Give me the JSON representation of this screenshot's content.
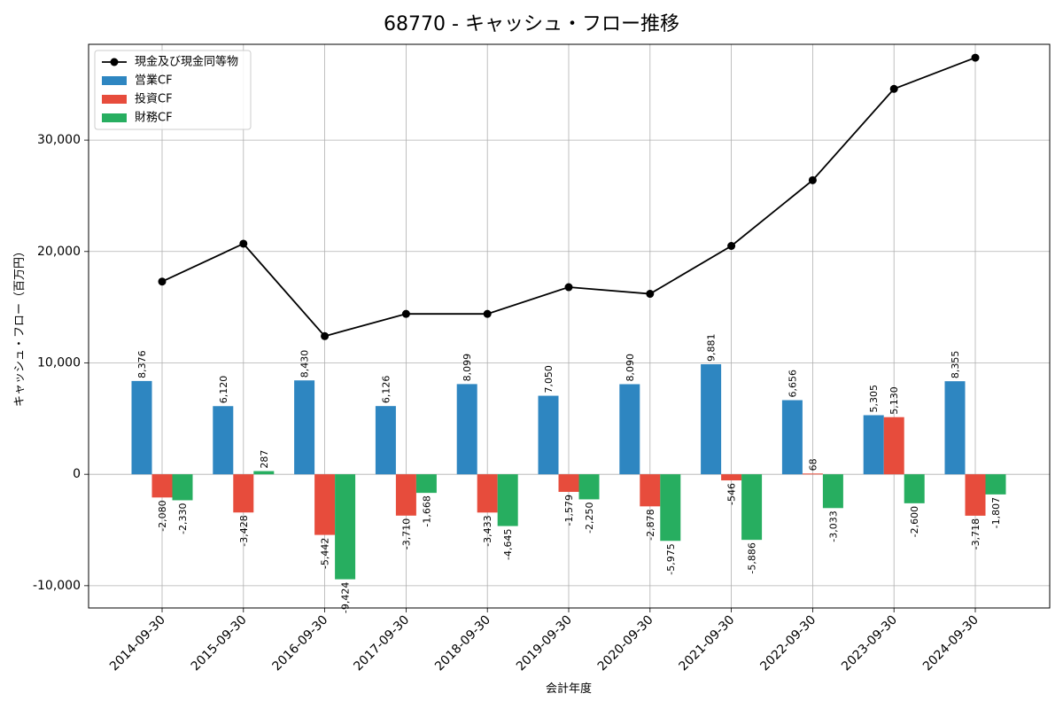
{
  "chart_data": {
    "type": "bar",
    "title": "68770 - キャッシュ・フロー推移",
    "xlabel": "会計年度",
    "ylabel": "キャッシュ・フロー（百万円）",
    "categories": [
      "2014-09-30",
      "2015-09-30",
      "2016-09-30",
      "2017-09-30",
      "2018-09-30",
      "2019-09-30",
      "2020-09-30",
      "2021-09-30",
      "2022-09-30",
      "2023-09-30",
      "2024-09-30"
    ],
    "ylim": [
      -12000,
      38600
    ],
    "yticks": [
      -10000,
      0,
      10000,
      20000,
      30000
    ],
    "ytick_labels": [
      "-10,000",
      "0",
      "10,000",
      "20,000",
      "30,000"
    ],
    "grid": true,
    "legend_position": "top-left",
    "series": [
      {
        "name": "営業CF",
        "kind": "bar",
        "color": "#2e86c1",
        "values": [
          8376,
          6120,
          8430,
          6126,
          8099,
          7050,
          8090,
          9881,
          6656,
          5305,
          8355
        ],
        "labels": [
          "8,376",
          "6,120",
          "8,430",
          "6,126",
          "8,099",
          "7,050",
          "8,090",
          "9,881",
          "6,656",
          "5,305",
          "8,355"
        ]
      },
      {
        "name": "投資CF",
        "kind": "bar",
        "color": "#e74c3c",
        "values": [
          -2080,
          -3428,
          -5442,
          -3710,
          -3433,
          -1579,
          -2878,
          -546,
          68,
          5130,
          -3718
        ],
        "labels": [
          "-2,080",
          "-3,428",
          "-5,442",
          "-3,710",
          "-3,433",
          "-1,579",
          "-2,878",
          "-546",
          "68",
          "5,130",
          "-3,718"
        ]
      },
      {
        "name": "財務CF",
        "kind": "bar",
        "color": "#27ae60",
        "values": [
          -2330,
          287,
          -9424,
          -1668,
          -4645,
          -2250,
          -5975,
          -5886,
          -3033,
          -2600,
          -1807
        ],
        "labels": [
          "-2,330",
          "287",
          "-9,424",
          "-1,668",
          "-4,645",
          "-2,250",
          "-5,975",
          "-5,886",
          "-3,033",
          "-2,600",
          "-1,807"
        ]
      },
      {
        "name": "現金及び現金同等物",
        "kind": "line",
        "color": "#000000",
        "values": [
          17300,
          20700,
          12400,
          14400,
          14400,
          16800,
          16200,
          20500,
          26400,
          34600,
          37400
        ]
      }
    ]
  }
}
